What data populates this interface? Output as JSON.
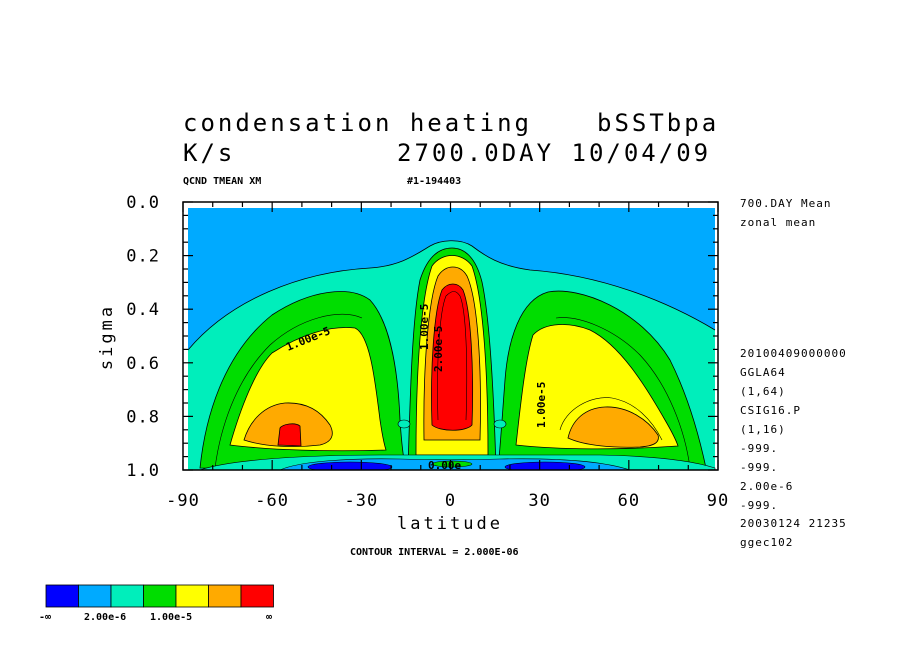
{
  "header": {
    "title_line1_left": "condensation heating",
    "title_line1_right": "bSSTbpa",
    "title_line2_left": "K/s",
    "title_line2_right": "2700.0DAY 10/04/09",
    "sub_left": "QCND TMEAN XM",
    "sub_right": "#1-194403"
  },
  "side_info_top": [
    "700.DAY Mean",
    "zonal mean"
  ],
  "side_info": [
    "20100409000000",
    "GGLA64",
    "(1,64)",
    "CSIG16.P",
    "(1,16)",
    "-999.",
    "-999.",
    "2.00e-6",
    "-999.",
    "20030124  21235",
    "ggec102"
  ],
  "contour_interval": "CONTOUR INTERVAL = 2.000E-06",
  "contour_labels": [
    "1.00e-5",
    "1.00e-5",
    "2.00e-5",
    "1.00e-5",
    "0.00e"
  ],
  "colorbar": {
    "colors": [
      "#0000ff",
      "#00aaff",
      "#00eebb",
      "#00dd00",
      "#ffff00",
      "#ffaa00",
      "#ff0000"
    ],
    "labels": [
      "-∞",
      "2.00e-6",
      "1.00e-5",
      "∞"
    ]
  },
  "chart_data": {
    "type": "heatmap",
    "subtype": "filled-contour",
    "title": "condensation heating",
    "units": "K/s",
    "xlabel": "latitude",
    "ylabel": "sigma",
    "xlim": [
      -90,
      90
    ],
    "ylim": [
      1.0,
      0.0
    ],
    "x_ticks": [
      -90,
      -60,
      -30,
      0,
      30,
      60,
      90
    ],
    "y_ticks": [
      0.0,
      0.2,
      0.4,
      0.6,
      0.8,
      1.0
    ],
    "x_tick_labels": [
      "-90",
      "-60",
      "-30",
      "0",
      "30",
      "60",
      "90"
    ],
    "y_tick_labels": [
      "0.0",
      "0.2",
      "0.4",
      "0.6",
      "0.8",
      "1.0"
    ],
    "contour_interval": 2e-06,
    "levels": [
      "-∞",
      2e-06,
      1e-05,
      "∞"
    ],
    "level_colors": [
      "#0000ff",
      "#00aaff",
      "#00eebb",
      "#00dd00",
      "#ffff00",
      "#ffaa00",
      "#ff0000"
    ],
    "features": [
      {
        "label": "tropical maximum",
        "lat": 0,
        "sigma": 0.5,
        "value_range": ">2e-5"
      },
      {
        "label": "southern midlatitude maximum",
        "lat": -55,
        "sigma": 0.87
      },
      {
        "label": "northern midlatitude maximum",
        "lat": 55,
        "sigma": 0.87
      },
      {
        "label": "near-surface minimum",
        "lat": 0,
        "sigma": 0.98
      }
    ]
  }
}
